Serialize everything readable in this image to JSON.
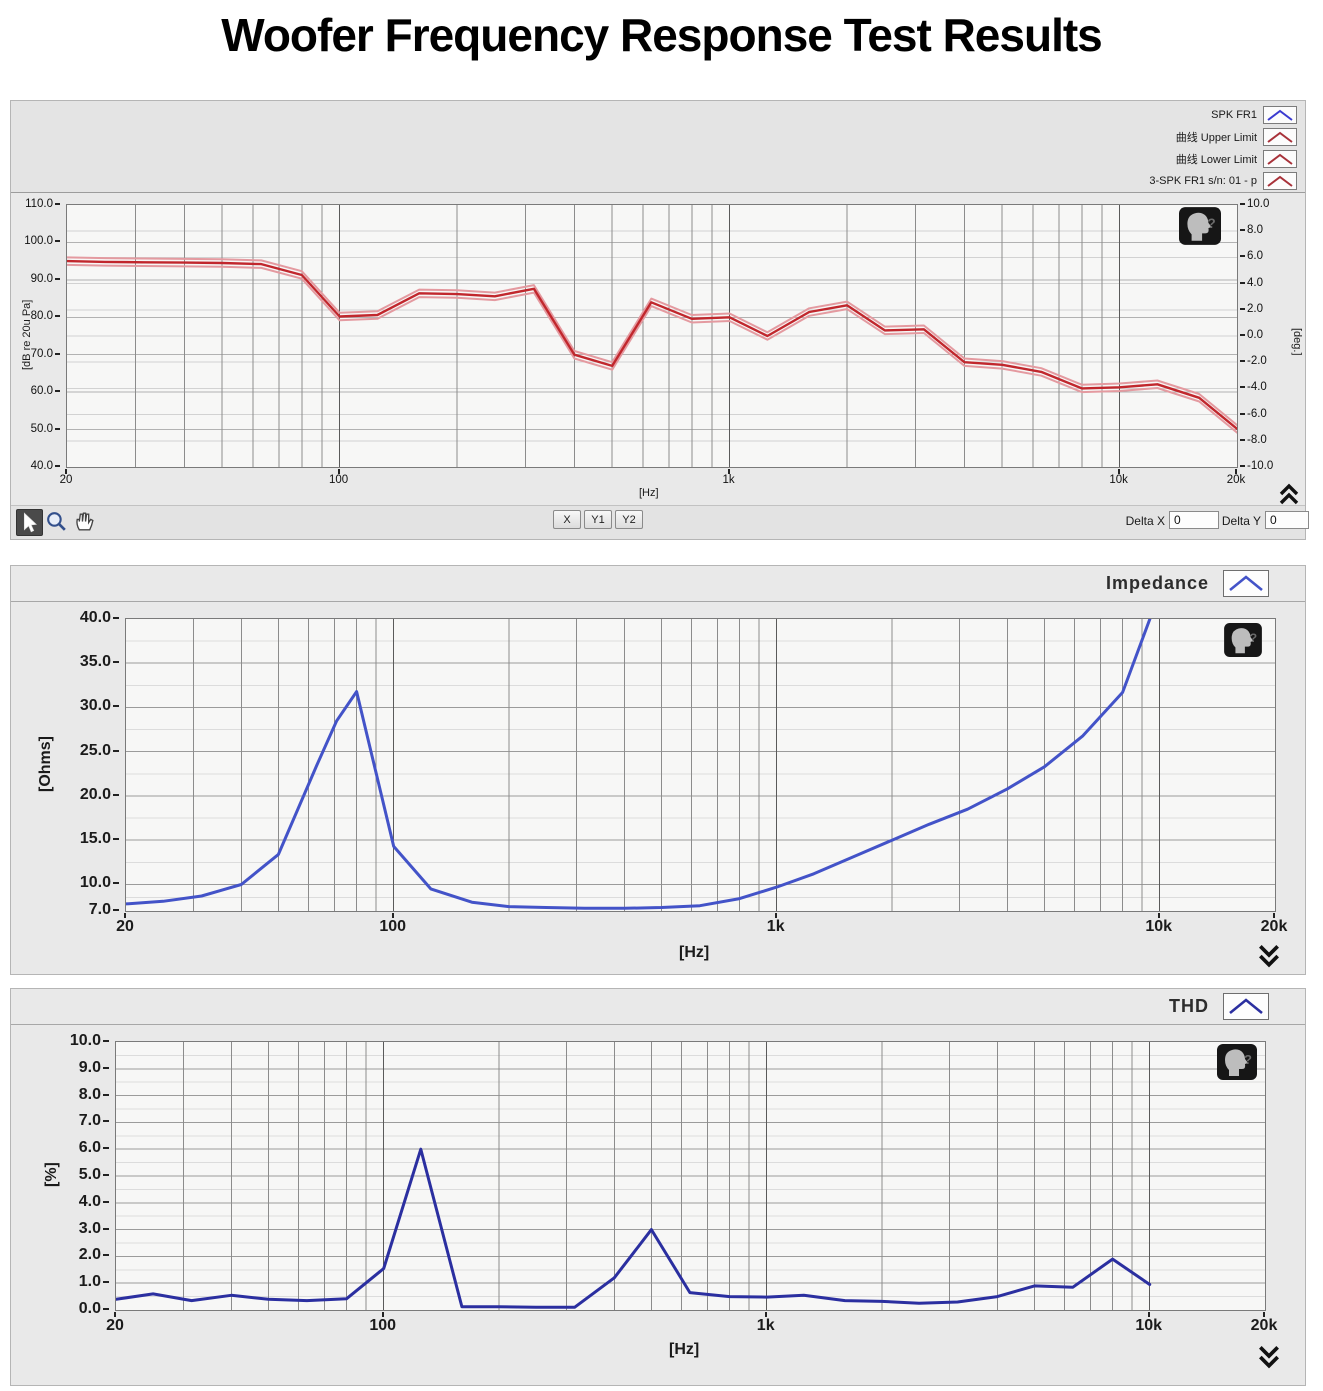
{
  "title": "Woofer Frequency Response Test Results",
  "colors": {
    "measured_red": "#c1272d",
    "limit_pink": "#e49aa0",
    "impedance_blue": "#4353c8",
    "thd_blue": "#2b2fa0",
    "legend_blue": "#3a3ad0",
    "legend_red": "#a8323a"
  },
  "fr_chart": {
    "legend": [
      {
        "label": "SPK FR1",
        "color": "#3a3ad0"
      },
      {
        "label": "曲线 Upper Limit",
        "color": "#a8323a"
      },
      {
        "label": "曲线 Lower Limit",
        "color": "#a8323a"
      },
      {
        "label": "3-SPK FR1 s/n: 01 - p",
        "color": "#a8323a"
      }
    ],
    "y_left_label": "[dB re 20u Pa]",
    "y_right_label": "[deg.]",
    "x_label": "[Hz]",
    "toolbar": {
      "x_button": "X",
      "y1_button": "Y1",
      "y2_button": "Y2",
      "delta_x_label": "Delta X",
      "delta_x_value": "0",
      "delta_y_label": "Delta Y",
      "delta_y_value": "0"
    }
  },
  "impedance_chart": {
    "legend_label": "Impedance",
    "y_label": "[Ohms]",
    "x_label": "[Hz]"
  },
  "thd_chart": {
    "legend_label": "THD",
    "y_label": "[%]",
    "x_label": "[Hz]"
  },
  "chart_data": [
    {
      "id": "spk_fr1",
      "type": "line",
      "title": "SPK FR1 frequency response",
      "x_log": true,
      "xlim": [
        20,
        20000
      ],
      "x_tick_values": [
        20,
        100,
        1000,
        10000,
        20000
      ],
      "x_tick_labels": [
        "20",
        "100",
        "1k",
        "10k",
        "20k"
      ],
      "xlabel": "[Hz]",
      "ylabel_left": "[dB re 20u Pa]",
      "ylim_left": [
        40,
        110
      ],
      "y_left_tick_values": [
        110,
        100,
        90,
        80,
        70,
        60,
        50,
        40
      ],
      "y_left_tick_labels": [
        "110.0",
        "100.0",
        "90.0",
        "80.0",
        "70.0",
        "60.0",
        "50.0",
        "40.0"
      ],
      "ylabel_right": "[deg.]",
      "ylim_right": [
        -10,
        10
      ],
      "y_right_tick_values": [
        10,
        8,
        6,
        4,
        2,
        0,
        -2,
        -4,
        -6,
        -8,
        -10
      ],
      "y_right_tick_labels": [
        "10.0",
        "8.0",
        "6.0",
        "4.0",
        "2.0",
        "0.0",
        "-2.0",
        "-4.0",
        "-6.0",
        "-8.0",
        "-10.0"
      ],
      "x_hz": [
        20,
        25,
        31.5,
        40,
        50,
        63,
        80,
        100,
        125,
        160,
        200,
        250,
        315,
        400,
        500,
        630,
        800,
        1000,
        1250,
        1600,
        2000,
        2500,
        3150,
        4000,
        5000,
        6300,
        8000,
        10000,
        12500,
        16000,
        20000
      ],
      "series": [
        {
          "name": "曲线 Upper Limit",
          "color": "#e49aa0",
          "width": 2,
          "values": [
            96,
            95.8,
            95.7,
            95.6,
            95.5,
            95.2,
            92.3,
            81.2,
            81.6,
            87.4,
            87.2,
            86.6,
            88.6,
            71,
            68,
            85,
            80.6,
            81,
            76,
            82.4,
            84.2,
            77.5,
            77.8,
            69,
            68.3,
            66.4,
            62,
            62.3,
            63.1,
            59.5,
            51.2
          ]
        },
        {
          "name": "曲线 Lower Limit",
          "color": "#e49aa0",
          "width": 2,
          "values": [
            94,
            93.8,
            93.7,
            93.6,
            93.5,
            93.2,
            90.3,
            79.2,
            79.6,
            85.4,
            85.2,
            84.6,
            86.6,
            69,
            66,
            83,
            78.6,
            79,
            74,
            80.4,
            82.2,
            75.5,
            75.8,
            67,
            66.3,
            64.4,
            60,
            60.3,
            61.1,
            57.5,
            49.2
          ]
        },
        {
          "name": "3-SPK FR1 s/n: 01 - p",
          "color": "#c1272d",
          "width": 2.4,
          "values": [
            95,
            94.8,
            94.7,
            94.6,
            94.5,
            94.2,
            91.3,
            80.2,
            80.6,
            86.4,
            86.2,
            85.6,
            87.6,
            70,
            67,
            84,
            79.6,
            80,
            75,
            81.4,
            83.2,
            76.5,
            76.8,
            68,
            67.3,
            65.4,
            61,
            61.3,
            62.1,
            58.5,
            50.2
          ]
        }
      ]
    },
    {
      "id": "impedance",
      "type": "line",
      "title": "Impedance",
      "x_log": true,
      "xlim": [
        20,
        20000
      ],
      "x_tick_values": [
        20,
        100,
        1000,
        10000,
        20000
      ],
      "x_tick_labels": [
        "20",
        "100",
        "1k",
        "10k",
        "20k"
      ],
      "xlabel": "[Hz]",
      "ylabel_left": "[Ohms]",
      "ylim_left": [
        7,
        40
      ],
      "y_left_tick_values": [
        40,
        35,
        30,
        25,
        20,
        15,
        10,
        7
      ],
      "y_left_tick_labels": [
        "40.0",
        "35.0",
        "30.0",
        "25.0",
        "20.0",
        "15.0",
        "10.0",
        "7.0"
      ],
      "x_hz": [
        20,
        25,
        31.5,
        40,
        50,
        63,
        71,
        80,
        100,
        125,
        160,
        200,
        250,
        315,
        400,
        500,
        630,
        800,
        1000,
        1250,
        1600,
        2000,
        2500,
        3150,
        4000,
        5000,
        6300,
        8000,
        10000
      ],
      "series": [
        {
          "name": "Impedance",
          "color": "#4353c8",
          "width": 3,
          "values": [
            7.8,
            8.1,
            8.7,
            10,
            13.4,
            23.5,
            28.5,
            31.8,
            14.3,
            9.5,
            8,
            7.5,
            7.4,
            7.3,
            7.3,
            7.4,
            7.6,
            8.4,
            9.7,
            11.2,
            13.2,
            15,
            16.8,
            18.5,
            20.8,
            23.3,
            26.8,
            31.7,
            43
          ]
        }
      ]
    },
    {
      "id": "thd",
      "type": "line",
      "title": "THD",
      "x_log": true,
      "xlim": [
        20,
        20000
      ],
      "x_tick_values": [
        20,
        100,
        1000,
        10000,
        20000
      ],
      "x_tick_labels": [
        "20",
        "100",
        "1k",
        "10k",
        "20k"
      ],
      "xlabel": "[Hz]",
      "ylabel_left": "[%]",
      "ylim_left": [
        0,
        10
      ],
      "y_left_tick_values": [
        10,
        9,
        8,
        7,
        6,
        5,
        4,
        3,
        2,
        1,
        0
      ],
      "y_left_tick_labels": [
        "10.0",
        "9.0",
        "8.0",
        "7.0",
        "6.0",
        "5.0",
        "4.0",
        "3.0",
        "2.0",
        "1.0",
        "0.0"
      ],
      "x_hz": [
        20,
        25,
        31.5,
        40,
        50,
        63,
        80,
        100,
        125,
        160,
        200,
        250,
        315,
        400,
        500,
        630,
        800,
        1000,
        1250,
        1600,
        2000,
        2500,
        3150,
        4000,
        5000,
        6300,
        8000,
        10000
      ],
      "series": [
        {
          "name": "THD",
          "color": "#2b2fa0",
          "width": 3,
          "values": [
            0.4,
            0.6,
            0.35,
            0.55,
            0.4,
            0.35,
            0.42,
            1.55,
            6,
            0.12,
            0.12,
            0.1,
            0.1,
            1.2,
            3,
            0.65,
            0.5,
            0.48,
            0.55,
            0.35,
            0.32,
            0.25,
            0.3,
            0.5,
            0.9,
            0.85,
            1.9,
            0.95
          ]
        }
      ]
    }
  ]
}
